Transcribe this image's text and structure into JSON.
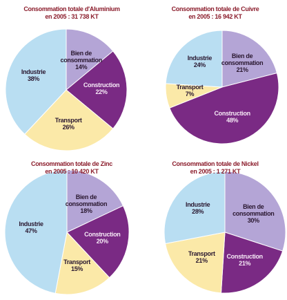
{
  "chart_data": [
    {
      "type": "pie",
      "title": "Consommation totale d'Aluminium",
      "subtitle": "en 2005 : 31 738 KT",
      "categories": [
        "Bien de consommation",
        "Construction",
        "Transport",
        "Industrie"
      ],
      "values": [
        14,
        22,
        26,
        38
      ],
      "value_labels": [
        "14%",
        "22%",
        "26%",
        "38%"
      ],
      "colors": [
        "#b4a5d6",
        "#7a2a84",
        "#fbe9a8",
        "#b9def2"
      ]
    },
    {
      "type": "pie",
      "title": "Consommation totale de Cuivre",
      "subtitle": "en 2005 : 16 942 KT",
      "categories": [
        "Bien de consommation",
        "Construction",
        "Transport",
        "Industrie"
      ],
      "values": [
        21,
        48,
        7,
        24
      ],
      "value_labels": [
        "21%",
        "48%",
        "7%",
        "24%"
      ],
      "colors": [
        "#b4a5d6",
        "#7a2a84",
        "#fbe9a8",
        "#b9def2"
      ]
    },
    {
      "type": "pie",
      "title": "Consommation totale de Zinc",
      "subtitle": "en 2005 : 10 420 KT",
      "categories": [
        "Bien de consommation",
        "Construction",
        "Transport",
        "Industrie"
      ],
      "values": [
        18,
        20,
        15,
        47
      ],
      "value_labels": [
        "18%",
        "20%",
        "15%",
        "47%"
      ],
      "colors": [
        "#b4a5d6",
        "#7a2a84",
        "#fbe9a8",
        "#b9def2"
      ]
    },
    {
      "type": "pie",
      "title": "Consommation totale de Nickel",
      "subtitle": "en 2005 : 1 271 KT",
      "categories": [
        "Bien de consommation",
        "Construction",
        "Transport",
        "Industrie"
      ],
      "values": [
        30,
        21,
        21,
        28
      ],
      "value_labels": [
        "30%",
        "21%",
        "21%",
        "28%"
      ],
      "colors": [
        "#b4a5d6",
        "#7a2a84",
        "#fbe9a8",
        "#b9def2"
      ]
    }
  ]
}
